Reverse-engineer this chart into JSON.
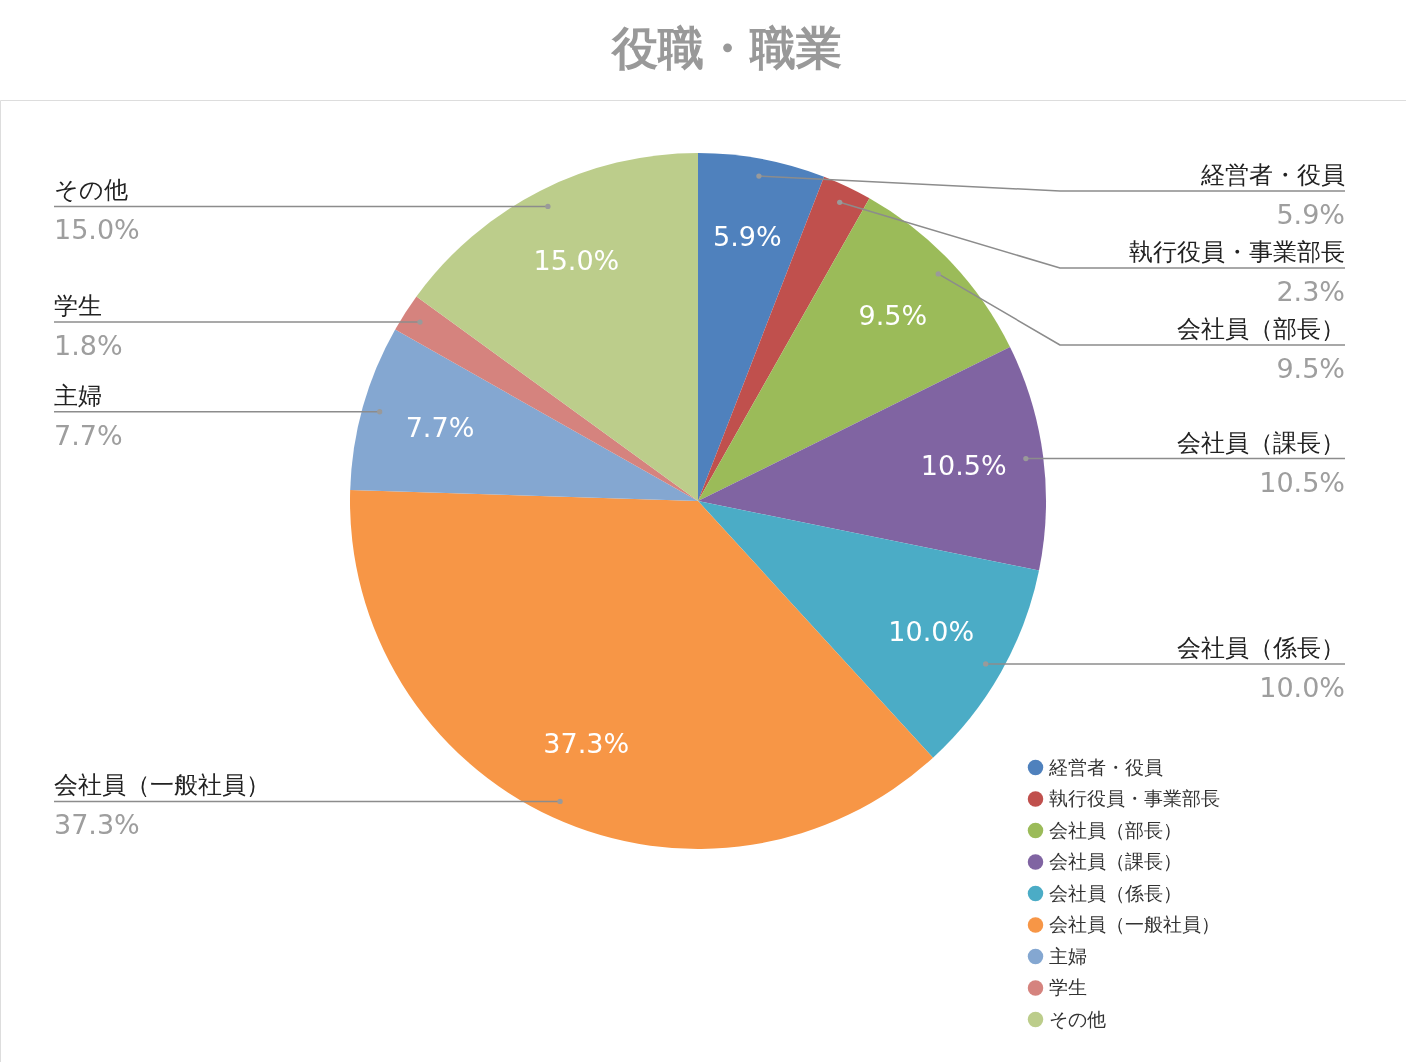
{
  "chart_data": {
    "type": "pie",
    "title": "役職・職業",
    "categories": [
      "経営者・役員",
      "執行役員・事業部長",
      "会社員（部長）",
      "会社員（課長）",
      "会社員（係長）",
      "会社員（一般社員）",
      "主婦",
      "学生",
      "その他"
    ],
    "values": [
      5.9,
      2.3,
      9.5,
      10.5,
      10.0,
      37.3,
      7.7,
      1.8,
      15.0
    ],
    "value_labels": [
      "5.9%",
      "2.3%",
      "9.5%",
      "10.5%",
      "10.0%",
      "37.3%",
      "7.7%",
      "1.8%",
      "15.0%"
    ],
    "colors": [
      "#4f81bd",
      "#c0504d",
      "#9bbb59",
      "#8064a2",
      "#4bacc6",
      "#f79646",
      "#84a7d1",
      "#d5837e",
      "#bccd8b"
    ],
    "legend": "bottom right"
  }
}
